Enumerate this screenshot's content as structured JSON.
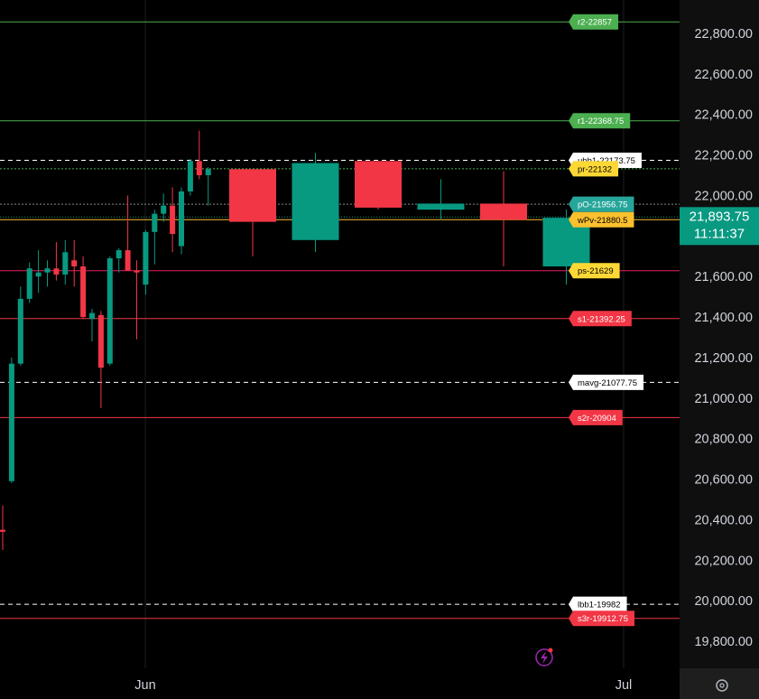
{
  "chart_data": {
    "type": "candlestick",
    "y_axis": {
      "range": [
        19700,
        22900
      ],
      "ticks": [
        22800,
        22600,
        22400,
        22200,
        22000,
        21800,
        21600,
        21400,
        21200,
        21000,
        20800,
        20600,
        20400,
        20200,
        20000,
        19800
      ],
      "tick_labels": [
        "22,800.00",
        "22,600.00",
        "22,400.00",
        "22,200.00",
        "22,000.00",
        "21,800.00",
        "21,600.00",
        "21,400.00",
        "21,200.00",
        "21,000.00",
        "20,800.00",
        "20,600.00",
        "20,400.00",
        "20,200.00",
        "20,000.00",
        "19,800.00"
      ]
    },
    "x_axis": {
      "labels": [
        "Jun",
        "Jul"
      ]
    },
    "grid": false,
    "current_price": {
      "value": 21893.75,
      "label": "21,893.75",
      "countdown": "11:11:37",
      "color": "#089981"
    },
    "levels": [
      {
        "label": "r2-22857",
        "value": 22857,
        "style": "solid",
        "line_color": "#4caf50",
        "bg": "#4caf50",
        "fg": "#ffffff"
      },
      {
        "label": "r1-22368.75",
        "value": 22368.75,
        "style": "solid",
        "line_color": "#4caf50",
        "bg": "#4caf50",
        "fg": "#ffffff"
      },
      {
        "label": "ubb1-22173.75",
        "value": 22173.75,
        "style": "dashed",
        "line_color": "#ffffff",
        "bg": "#ffffff",
        "fg": "#000000"
      },
      {
        "label": "pr-22132",
        "value": 22132,
        "style": "dotted",
        "line_color": "#4caf50",
        "bg": "#fdd835",
        "fg": "#000000"
      },
      {
        "label": "pO-21956.75",
        "value": 21956.75,
        "style": "dotted",
        "line_color": "#888888",
        "bg": "#26a69a",
        "fg": "#ffffff"
      },
      {
        "label": "wPv-21880.5",
        "value": 21880.5,
        "style": "solid",
        "line_color": "#fbc02d",
        "bg": "#fbc02d",
        "fg": "#000000"
      },
      {
        "label": "ps-21629",
        "value": 21629,
        "style": "solid",
        "line_color": "#e91e63",
        "bg": "#fdd835",
        "fg": "#000000"
      },
      {
        "label": "s1-21392.25",
        "value": 21392.25,
        "style": "solid",
        "line_color": "#f23645",
        "bg": "#f23645",
        "fg": "#ffffff"
      },
      {
        "label": "mavg-21077.75",
        "value": 21077.75,
        "style": "dashed",
        "line_color": "#ffffff",
        "bg": "#ffffff",
        "fg": "#000000"
      },
      {
        "label": "s2r-20904",
        "value": 20904,
        "style": "solid",
        "line_color": "#f23645",
        "bg": "#f23645",
        "fg": "#ffffff"
      },
      {
        "label": "lbb1-19982",
        "value": 19982,
        "style": "dashed",
        "line_color": "#ffffff",
        "bg": "#ffffff",
        "fg": "#000000"
      },
      {
        "label": "s3r-19912.75",
        "value": 19912.75,
        "style": "solid",
        "line_color": "#f23645",
        "bg": "#f23645",
        "fg": "#ffffff"
      }
    ],
    "colors": {
      "up": "#089981",
      "down": "#f23645"
    },
    "candles": [
      {
        "o": 20350,
        "h": 20470,
        "l": 20250,
        "c": 20340
      },
      {
        "o": 20590,
        "h": 21200,
        "l": 20580,
        "c": 21170
      },
      {
        "o": 21170,
        "h": 21550,
        "l": 21160,
        "c": 21490
      },
      {
        "o": 21490,
        "h": 21670,
        "l": 21470,
        "c": 21640
      },
      {
        "o": 21600,
        "h": 21730,
        "l": 21520,
        "c": 21620
      },
      {
        "o": 21620,
        "h": 21680,
        "l": 21550,
        "c": 21640
      },
      {
        "o": 21640,
        "h": 21770,
        "l": 21580,
        "c": 21610
      },
      {
        "o": 21610,
        "h": 21780,
        "l": 21560,
        "c": 21720
      },
      {
        "o": 21680,
        "h": 21780,
        "l": 21550,
        "c": 21650
      },
      {
        "o": 21650,
        "h": 21700,
        "l": 21390,
        "c": 21400
      },
      {
        "o": 21390,
        "h": 21440,
        "l": 21280,
        "c": 21420
      },
      {
        "o": 21410,
        "h": 21430,
        "l": 20950,
        "c": 21150
      },
      {
        "o": 21170,
        "h": 21700,
        "l": 21160,
        "c": 21690
      },
      {
        "o": 21690,
        "h": 21740,
        "l": 21620,
        "c": 21730
      },
      {
        "o": 21730,
        "h": 22000,
        "l": 21630,
        "c": 21630
      },
      {
        "o": 21630,
        "h": 21680,
        "l": 21290,
        "c": 21620
      },
      {
        "o": 21560,
        "h": 21830,
        "l": 21510,
        "c": 21820
      },
      {
        "o": 21820,
        "h": 21930,
        "l": 21660,
        "c": 21910
      },
      {
        "o": 21910,
        "h": 22010,
        "l": 21870,
        "c": 21950
      },
      {
        "o": 21950,
        "h": 22040,
        "l": 21720,
        "c": 21810
      },
      {
        "o": 21750,
        "h": 22040,
        "l": 21710,
        "c": 22020
      },
      {
        "o": 22020,
        "h": 22180,
        "l": 22000,
        "c": 22170
      },
      {
        "o": 22170,
        "h": 22320,
        "l": 22080,
        "c": 22100
      },
      {
        "o": 22100,
        "h": 22140,
        "l": 21950,
        "c": 22130
      },
      {
        "o": 22130,
        "h": 22130,
        "l": 21700,
        "c": 21870
      },
      {
        "o": 21780,
        "h": 22210,
        "l": 21720,
        "c": 22160
      },
      {
        "o": 22170,
        "h": 22170,
        "l": 21930,
        "c": 21940
      },
      {
        "o": 21930,
        "h": 22080,
        "l": 21880,
        "c": 21960
      },
      {
        "o": 21960,
        "h": 22120,
        "l": 21650,
        "c": 21880
      },
      {
        "o": 21650,
        "h": 21930,
        "l": 21560,
        "c": 21890
      }
    ]
  }
}
